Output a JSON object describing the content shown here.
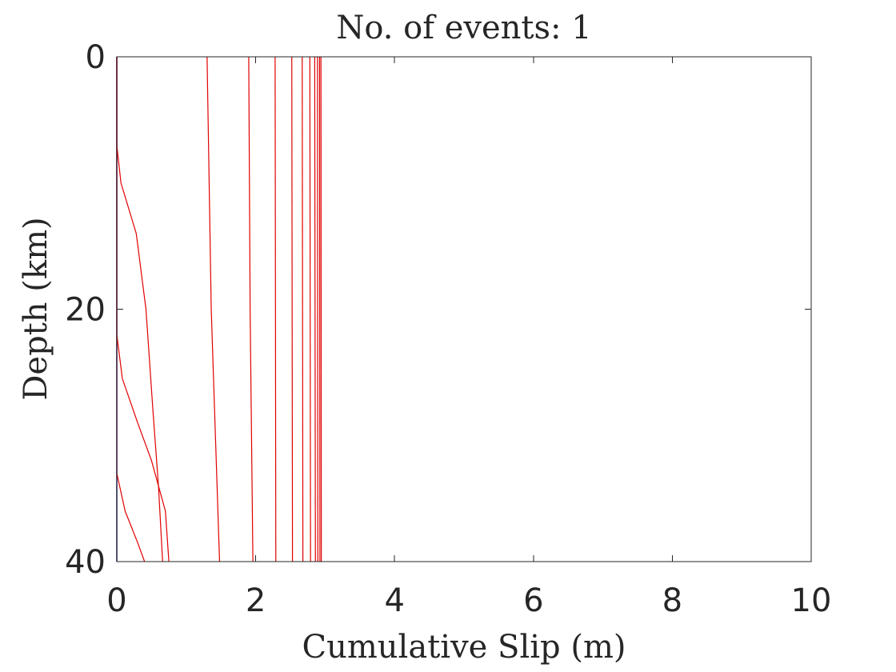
{
  "chart_data": {
    "type": "line",
    "title": "No. of events: 1",
    "xlabel": "Cumulative Slip (m)",
    "ylabel": "Depth (km)",
    "xlim": [
      0,
      10
    ],
    "ylim": [
      0,
      40
    ],
    "y_reversed": true,
    "xticks": [
      0,
      2,
      4,
      6,
      8,
      10
    ],
    "yticks": [
      0,
      20,
      40
    ],
    "grid": false,
    "line_color": "#e00000",
    "axis_color": "#262626",
    "base_color": "#000080",
    "series": [
      {
        "points": [
          [
            0,
            0
          ],
          [
            0,
            7
          ],
          [
            0.06,
            10
          ],
          [
            0.28,
            14
          ],
          [
            0.42,
            20
          ],
          [
            0.52,
            28
          ],
          [
            0.6,
            34
          ],
          [
            0.66,
            40
          ]
        ]
      },
      {
        "points": [
          [
            0,
            0
          ],
          [
            0,
            22
          ],
          [
            0.08,
            25.5
          ],
          [
            0.3,
            29
          ],
          [
            0.5,
            32
          ],
          [
            0.7,
            36
          ],
          [
            0.75,
            40
          ]
        ]
      },
      {
        "points": [
          [
            0,
            0
          ],
          [
            0,
            33
          ],
          [
            0.12,
            36
          ],
          [
            0.3,
            38.5
          ],
          [
            0.4,
            40
          ]
        ]
      },
      {
        "points": [
          [
            1.3,
            0
          ],
          [
            1.36,
            20
          ],
          [
            1.48,
            40
          ]
        ]
      },
      {
        "points": [
          [
            1.9,
            0
          ],
          [
            1.92,
            20
          ],
          [
            1.96,
            40
          ]
        ]
      },
      {
        "points": [
          [
            2.28,
            0
          ],
          [
            2.29,
            40
          ]
        ]
      },
      {
        "points": [
          [
            2.52,
            0
          ],
          [
            2.53,
            40
          ]
        ]
      },
      {
        "points": [
          [
            2.67,
            0
          ],
          [
            2.68,
            40
          ]
        ]
      },
      {
        "points": [
          [
            2.78,
            0
          ],
          [
            2.79,
            40
          ]
        ]
      },
      {
        "points": [
          [
            2.85,
            0
          ],
          [
            2.86,
            40
          ]
        ]
      },
      {
        "points": [
          [
            2.89,
            0
          ],
          [
            2.895,
            40
          ]
        ]
      },
      {
        "points": [
          [
            2.92,
            0
          ],
          [
            2.925,
            40
          ]
        ]
      },
      {
        "points": [
          [
            2.94,
            0
          ],
          [
            2.945,
            40
          ]
        ]
      }
    ]
  }
}
